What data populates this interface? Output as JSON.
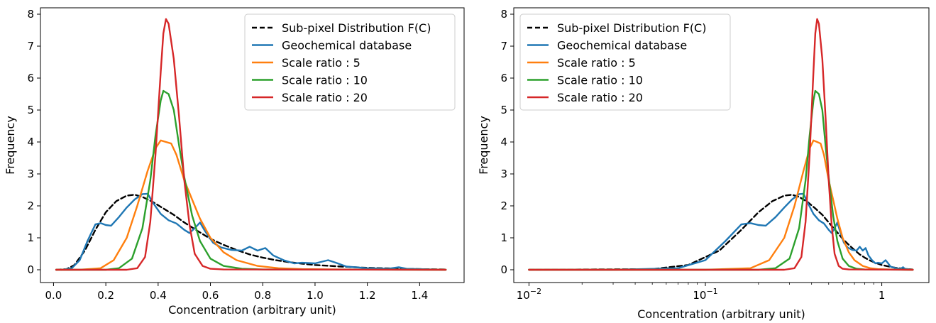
{
  "chart_data": [
    {
      "type": "line",
      "xscale": "linear",
      "xlabel": "Concentration (arbitrary unit)",
      "ylabel": "Frequency",
      "xlim": [
        -0.05,
        1.57
      ],
      "ylim": [
        -0.4,
        8.2
      ],
      "xticks": [
        0.0,
        0.2,
        0.4,
        0.6,
        0.8,
        1.0,
        1.2,
        1.4
      ],
      "xtick_labels": [
        "0.0",
        "0.2",
        "0.4",
        "0.6",
        "0.8",
        "1.0",
        "1.2",
        "1.4"
      ],
      "yticks": [
        0,
        1,
        2,
        3,
        4,
        5,
        6,
        7,
        8
      ],
      "ytick_labels": [
        "0",
        "1",
        "2",
        "3",
        "4",
        "5",
        "6",
        "7",
        "8"
      ],
      "grid": false,
      "legend_position": "top-right",
      "series": [
        {
          "name": "Sub-pixel Distribution F(C)",
          "color": "#000000",
          "dash": "dashed",
          "points": [
            [
              0.01,
              0
            ],
            [
              0.05,
              0.02
            ],
            [
              0.08,
              0.15
            ],
            [
              0.12,
              0.6
            ],
            [
              0.16,
              1.25
            ],
            [
              0.2,
              1.8
            ],
            [
              0.24,
              2.15
            ],
            [
              0.28,
              2.32
            ],
            [
              0.31,
              2.35
            ],
            [
              0.34,
              2.28
            ],
            [
              0.38,
              2.12
            ],
            [
              0.42,
              1.92
            ],
            [
              0.46,
              1.72
            ],
            [
              0.5,
              1.48
            ],
            [
              0.55,
              1.22
            ],
            [
              0.6,
              0.97
            ],
            [
              0.65,
              0.78
            ],
            [
              0.7,
              0.62
            ],
            [
              0.75,
              0.48
            ],
            [
              0.8,
              0.38
            ],
            [
              0.85,
              0.3
            ],
            [
              0.9,
              0.24
            ],
            [
              0.95,
              0.19
            ],
            [
              1.0,
              0.15
            ],
            [
              1.1,
              0.1
            ],
            [
              1.2,
              0.06
            ],
            [
              1.3,
              0.04
            ],
            [
              1.4,
              0.02
            ],
            [
              1.5,
              0.01
            ]
          ]
        },
        {
          "name": "Geochemical database",
          "color": "#1f77b4",
          "dash": "solid",
          "points": [
            [
              0.03,
              0
            ],
            [
              0.07,
              0.05
            ],
            [
              0.1,
              0.3
            ],
            [
              0.13,
              0.9
            ],
            [
              0.16,
              1.42
            ],
            [
              0.18,
              1.46
            ],
            [
              0.2,
              1.4
            ],
            [
              0.22,
              1.38
            ],
            [
              0.25,
              1.65
            ],
            [
              0.28,
              1.95
            ],
            [
              0.31,
              2.2
            ],
            [
              0.34,
              2.37
            ],
            [
              0.36,
              2.38
            ],
            [
              0.38,
              2.1
            ],
            [
              0.41,
              1.75
            ],
            [
              0.44,
              1.55
            ],
            [
              0.47,
              1.45
            ],
            [
              0.5,
              1.25
            ],
            [
              0.52,
              1.15
            ],
            [
              0.54,
              1.3
            ],
            [
              0.56,
              1.48
            ],
            [
              0.58,
              1.2
            ],
            [
              0.61,
              0.85
            ],
            [
              0.64,
              0.7
            ],
            [
              0.68,
              0.62
            ],
            [
              0.72,
              0.6
            ],
            [
              0.75,
              0.72
            ],
            [
              0.78,
              0.6
            ],
            [
              0.81,
              0.68
            ],
            [
              0.84,
              0.45
            ],
            [
              0.88,
              0.3
            ],
            [
              0.92,
              0.2
            ],
            [
              0.95,
              0.22
            ],
            [
              1.0,
              0.2
            ],
            [
              1.05,
              0.3
            ],
            [
              1.08,
              0.22
            ],
            [
              1.12,
              0.1
            ],
            [
              1.2,
              0.05
            ],
            [
              1.28,
              0.03
            ],
            [
              1.32,
              0.08
            ],
            [
              1.35,
              0.03
            ],
            [
              1.45,
              0.01
            ],
            [
              1.5,
              0
            ]
          ]
        },
        {
          "name": "Scale ratio : 5",
          "color": "#ff7f0e",
          "dash": "solid",
          "points": [
            [
              0.01,
              0
            ],
            [
              0.1,
              0
            ],
            [
              0.18,
              0.05
            ],
            [
              0.23,
              0.3
            ],
            [
              0.28,
              1.0
            ],
            [
              0.32,
              2.0
            ],
            [
              0.36,
              3.1
            ],
            [
              0.39,
              3.8
            ],
            [
              0.41,
              4.05
            ],
            [
              0.43,
              4.0
            ],
            [
              0.45,
              3.95
            ],
            [
              0.47,
              3.6
            ],
            [
              0.5,
              2.8
            ],
            [
              0.53,
              2.2
            ],
            [
              0.56,
              1.6
            ],
            [
              0.6,
              1.0
            ],
            [
              0.65,
              0.55
            ],
            [
              0.7,
              0.3
            ],
            [
              0.78,
              0.12
            ],
            [
              0.86,
              0.05
            ],
            [
              0.95,
              0.02
            ],
            [
              1.1,
              0.01
            ],
            [
              1.5,
              0
            ]
          ]
        },
        {
          "name": "Scale ratio : 10",
          "color": "#2ca02c",
          "dash": "solid",
          "points": [
            [
              0.01,
              0
            ],
            [
              0.2,
              0
            ],
            [
              0.25,
              0.05
            ],
            [
              0.3,
              0.35
            ],
            [
              0.34,
              1.3
            ],
            [
              0.37,
              2.8
            ],
            [
              0.39,
              4.2
            ],
            [
              0.41,
              5.3
            ],
            [
              0.42,
              5.6
            ],
            [
              0.44,
              5.5
            ],
            [
              0.46,
              5.0
            ],
            [
              0.48,
              3.9
            ],
            [
              0.5,
              2.9
            ],
            [
              0.53,
              1.7
            ],
            [
              0.56,
              0.9
            ],
            [
              0.6,
              0.35
            ],
            [
              0.65,
              0.12
            ],
            [
              0.72,
              0.03
            ],
            [
              0.8,
              0.01
            ],
            [
              1.5,
              0
            ]
          ]
        },
        {
          "name": "Scale ratio : 20",
          "color": "#d62728",
          "dash": "solid",
          "points": [
            [
              0.01,
              0
            ],
            [
              0.28,
              0
            ],
            [
              0.32,
              0.05
            ],
            [
              0.35,
              0.4
            ],
            [
              0.37,
              1.5
            ],
            [
              0.39,
              3.6
            ],
            [
              0.41,
              6.2
            ],
            [
              0.42,
              7.4
            ],
            [
              0.43,
              7.85
            ],
            [
              0.44,
              7.7
            ],
            [
              0.46,
              6.6
            ],
            [
              0.48,
              4.8
            ],
            [
              0.5,
              2.8
            ],
            [
              0.52,
              1.4
            ],
            [
              0.54,
              0.5
            ],
            [
              0.57,
              0.12
            ],
            [
              0.6,
              0.03
            ],
            [
              0.65,
              0.01
            ],
            [
              1.5,
              0
            ]
          ]
        }
      ]
    },
    {
      "type": "line",
      "xscale": "log",
      "xlabel": "Concentration (arbitrary unit)",
      "ylabel": "Frequency",
      "xlim": [
        0.0082,
        1.85
      ],
      "ylim": [
        -0.4,
        8.2
      ],
      "xticks": [
        0.01,
        0.1,
        1
      ],
      "xtick_labels": [
        "10",
        "10",
        "1"
      ],
      "xtick_exponents": [
        "−2",
        "−1",
        ""
      ],
      "yticks": [
        0,
        1,
        2,
        3,
        4,
        5,
        6,
        7,
        8
      ],
      "ytick_labels": [
        "0",
        "1",
        "2",
        "3",
        "4",
        "5",
        "6",
        "7",
        "8"
      ],
      "grid": false,
      "legend_position": "top-left",
      "same_series_as_chart": 0
    }
  ],
  "colors": {
    "axes": "#000000",
    "background": "#ffffff"
  }
}
